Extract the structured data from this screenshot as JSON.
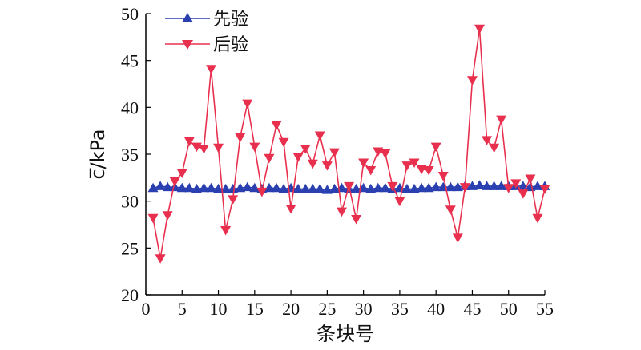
{
  "chart_data": {
    "type": "line",
    "xlabel": "条块号",
    "ylabel": "c̅/kPa",
    "xlim": [
      0,
      55
    ],
    "ylim": [
      20,
      50
    ],
    "xticks": [
      "0",
      "5",
      "10",
      "15",
      "20",
      "25",
      "30",
      "35",
      "40",
      "45",
      "50",
      "55"
    ],
    "yticks": [
      "20",
      "25",
      "30",
      "35",
      "40",
      "45",
      "50"
    ],
    "grid": false,
    "legend_position": "top-left",
    "series": [
      {
        "name": "先验",
        "color": "#2a3fb0",
        "marker": "triangle-up",
        "x": [
          1,
          2,
          3,
          4,
          5,
          6,
          7,
          8,
          9,
          10,
          11,
          12,
          13,
          14,
          15,
          16,
          17,
          18,
          19,
          20,
          21,
          22,
          23,
          24,
          25,
          26,
          27,
          28,
          29,
          30,
          31,
          32,
          33,
          34,
          35,
          36,
          37,
          38,
          39,
          40,
          41,
          42,
          43,
          44,
          45,
          46,
          47,
          48,
          49,
          50,
          51,
          52,
          53,
          54,
          55
        ],
        "y": [
          31.4,
          31.6,
          31.5,
          31.5,
          31.4,
          31.4,
          31.3,
          31.4,
          31.4,
          31.3,
          31.3,
          31.3,
          31.4,
          31.5,
          31.4,
          31.3,
          31.4,
          31.4,
          31.3,
          31.4,
          31.3,
          31.3,
          31.3,
          31.3,
          31.2,
          31.3,
          31.4,
          31.3,
          31.3,
          31.4,
          31.3,
          31.4,
          31.4,
          31.3,
          31.4,
          31.3,
          31.3,
          31.4,
          31.4,
          31.5,
          31.5,
          31.5,
          31.5,
          31.6,
          31.6,
          31.7,
          31.6,
          31.6,
          31.6,
          31.6,
          31.6,
          31.6,
          31.5,
          31.6,
          31.6
        ]
      },
      {
        "name": "后验",
        "color": "#e8304e",
        "marker": "triangle-down",
        "x": [
          1,
          2,
          3,
          4,
          5,
          6,
          7,
          8,
          9,
          10,
          11,
          12,
          13,
          14,
          15,
          16,
          17,
          18,
          19,
          20,
          21,
          22,
          23,
          24,
          25,
          26,
          27,
          28,
          29,
          30,
          31,
          32,
          33,
          34,
          35,
          36,
          37,
          38,
          39,
          40,
          41,
          42,
          43,
          44,
          45,
          46,
          47,
          48,
          49,
          50,
          51,
          52,
          53,
          54,
          55
        ],
        "y": [
          28.2,
          23.9,
          28.5,
          32.1,
          33.0,
          36.4,
          35.8,
          35.6,
          44.1,
          35.7,
          26.9,
          30.2,
          36.8,
          40.4,
          35.8,
          31.0,
          34.6,
          38.1,
          36.3,
          29.2,
          34.7,
          35.6,
          34.0,
          37.0,
          33.8,
          35.2,
          28.9,
          31.6,
          28.1,
          34.1,
          33.3,
          35.3,
          35.1,
          31.6,
          30.0,
          33.8,
          34.1,
          33.4,
          33.3,
          35.8,
          32.7,
          29.1,
          26.1,
          31.5,
          42.9,
          48.4,
          36.5,
          35.7,
          38.7,
          31.4,
          31.9,
          30.8,
          32.4,
          28.2,
          31.3
        ]
      }
    ]
  }
}
